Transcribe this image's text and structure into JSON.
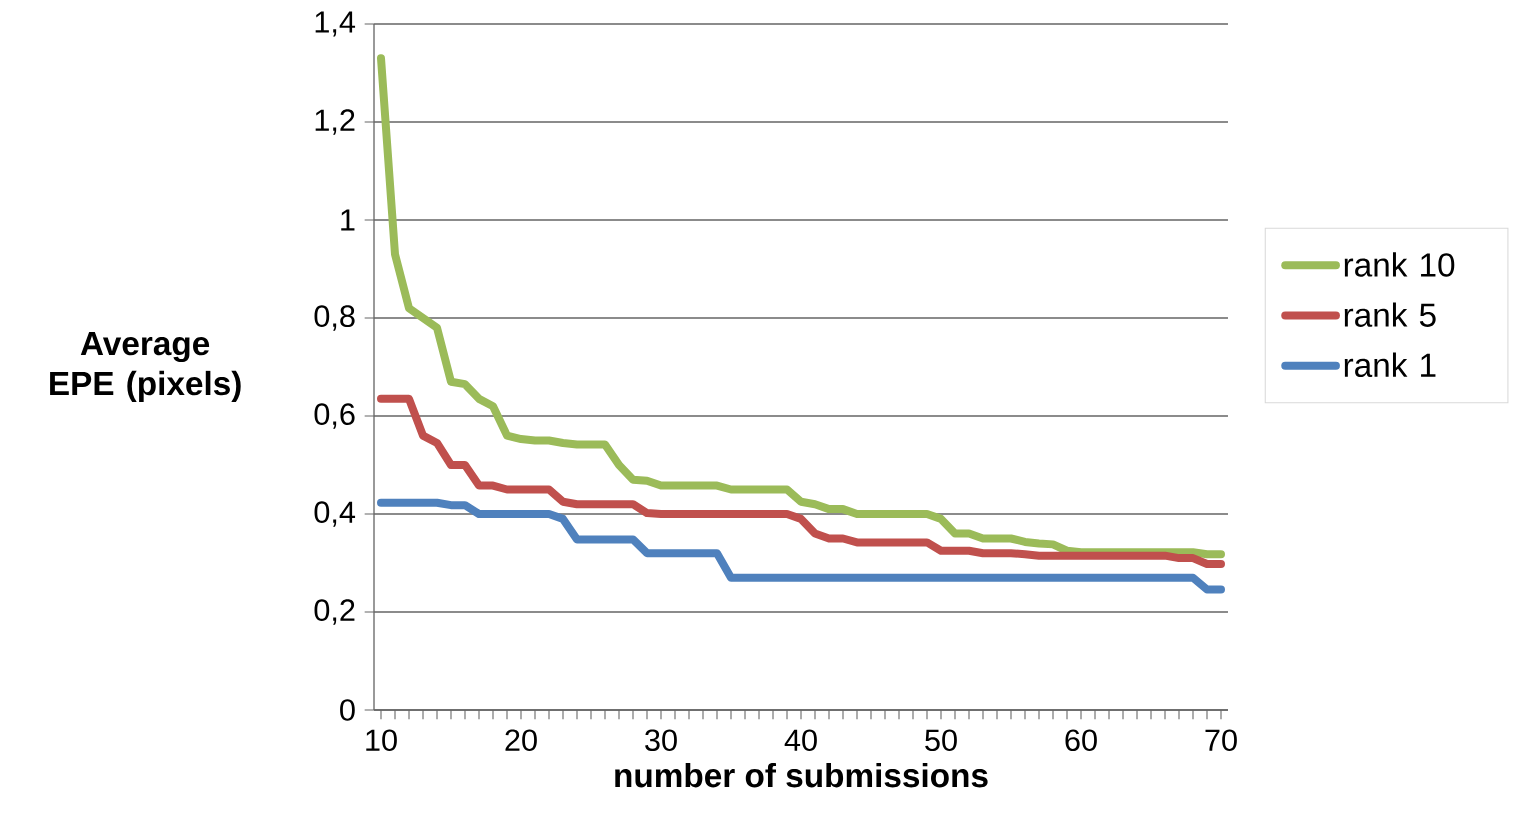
{
  "chart_data": {
    "type": "line",
    "xlabel": "number of submissions",
    "ylabel": "Average EPE (pixels)",
    "x": [
      10,
      11,
      12,
      13,
      14,
      15,
      16,
      17,
      18,
      19,
      20,
      21,
      22,
      23,
      24,
      25,
      26,
      27,
      28,
      29,
      30,
      31,
      32,
      33,
      34,
      35,
      36,
      37,
      38,
      39,
      40,
      41,
      42,
      43,
      44,
      45,
      46,
      47,
      48,
      49,
      50,
      51,
      52,
      53,
      54,
      55,
      56,
      57,
      58,
      59,
      60,
      61,
      62,
      63,
      64,
      65,
      66,
      67,
      68,
      69,
      70
    ],
    "series": [
      {
        "name": "rank 10",
        "color": "#9bbb59",
        "values": [
          1.33,
          0.93,
          0.82,
          0.8,
          0.78,
          0.67,
          0.665,
          0.635,
          0.62,
          0.56,
          0.553,
          0.55,
          0.55,
          0.545,
          0.542,
          0.542,
          0.542,
          0.5,
          0.47,
          0.468,
          0.458,
          0.458,
          0.458,
          0.458,
          0.458,
          0.45,
          0.45,
          0.45,
          0.45,
          0.45,
          0.425,
          0.42,
          0.41,
          0.41,
          0.4,
          0.4,
          0.4,
          0.4,
          0.4,
          0.4,
          0.39,
          0.36,
          0.36,
          0.35,
          0.35,
          0.35,
          0.343,
          0.34,
          0.338,
          0.325,
          0.322,
          0.322,
          0.322,
          0.322,
          0.322,
          0.322,
          0.322,
          0.322,
          0.322,
          0.318,
          0.318
        ]
      },
      {
        "name": "rank 5",
        "color": "#c0504d",
        "values": [
          0.635,
          0.635,
          0.635,
          0.56,
          0.545,
          0.5,
          0.5,
          0.458,
          0.458,
          0.45,
          0.45,
          0.45,
          0.45,
          0.425,
          0.42,
          0.42,
          0.42,
          0.42,
          0.42,
          0.402,
          0.4,
          0.4,
          0.4,
          0.4,
          0.4,
          0.4,
          0.4,
          0.4,
          0.4,
          0.4,
          0.39,
          0.36,
          0.35,
          0.35,
          0.342,
          0.342,
          0.342,
          0.342,
          0.342,
          0.342,
          0.325,
          0.325,
          0.325,
          0.32,
          0.32,
          0.32,
          0.318,
          0.315,
          0.315,
          0.315,
          0.315,
          0.315,
          0.315,
          0.315,
          0.315,
          0.315,
          0.315,
          0.31,
          0.31,
          0.298,
          0.298
        ]
      },
      {
        "name": "rank 1",
        "color": "#4f81bd",
        "values": [
          0.423,
          0.423,
          0.423,
          0.423,
          0.423,
          0.418,
          0.418,
          0.4,
          0.4,
          0.4,
          0.4,
          0.4,
          0.4,
          0.39,
          0.348,
          0.348,
          0.348,
          0.348,
          0.348,
          0.32,
          0.32,
          0.32,
          0.32,
          0.32,
          0.32,
          0.27,
          0.27,
          0.27,
          0.27,
          0.27,
          0.27,
          0.27,
          0.27,
          0.27,
          0.27,
          0.27,
          0.27,
          0.27,
          0.27,
          0.27,
          0.27,
          0.27,
          0.27,
          0.27,
          0.27,
          0.27,
          0.27,
          0.27,
          0.27,
          0.27,
          0.27,
          0.27,
          0.27,
          0.27,
          0.27,
          0.27,
          0.27,
          0.27,
          0.27,
          0.246,
          0.246
        ]
      }
    ],
    "xlim": [
      9.5,
      70.5
    ],
    "xticks": [
      10,
      {
        "value": 11,
        "label": null
      },
      {
        "value": 12,
        "label": null
      },
      {
        "value": 13,
        "label": null
      },
      {
        "value": 14,
        "label": null
      },
      {
        "value": 15,
        "label": null
      },
      {
        "value": 16,
        "label": null
      },
      {
        "value": 17,
        "label": null
      },
      {
        "value": 18,
        "label": null
      },
      {
        "value": 19,
        "label": null
      },
      20,
      {
        "value": 21,
        "label": null
      },
      {
        "value": 22,
        "label": null
      },
      {
        "value": 23,
        "label": null
      },
      {
        "value": 24,
        "label": null
      },
      {
        "value": 25,
        "label": null
      },
      {
        "value": 26,
        "label": null
      },
      {
        "value": 27,
        "label": null
      },
      {
        "value": 28,
        "label": null
      },
      {
        "value": 29,
        "label": null
      },
      30,
      {
        "value": 31,
        "label": null
      },
      {
        "value": 32,
        "label": null
      },
      {
        "value": 33,
        "label": null
      },
      {
        "value": 34,
        "label": null
      },
      {
        "value": 35,
        "label": null
      },
      {
        "value": 36,
        "label": null
      },
      {
        "value": 37,
        "label": null
      },
      {
        "value": 38,
        "label": null
      },
      {
        "value": 39,
        "label": null
      },
      40,
      {
        "value": 41,
        "label": null
      },
      {
        "value": 42,
        "label": null
      },
      {
        "value": 43,
        "label": null
      },
      {
        "value": 44,
        "label": null
      },
      {
        "value": 45,
        "label": null
      },
      {
        "value": 46,
        "label": null
      },
      {
        "value": 47,
        "label": null
      },
      {
        "value": 48,
        "label": null
      },
      {
        "value": 49,
        "label": null
      },
      50,
      {
        "value": 51,
        "label": null
      },
      {
        "value": 52,
        "label": null
      },
      {
        "value": 53,
        "label": null
      },
      {
        "value": 54,
        "label": null
      },
      {
        "value": 55,
        "label": null
      },
      {
        "value": 56,
        "label": null
      },
      {
        "value": 57,
        "label": null
      },
      {
        "value": 58,
        "label": null
      },
      {
        "value": 59,
        "label": null
      },
      60,
      {
        "value": 61,
        "label": null
      },
      {
        "value": 62,
        "label": null
      },
      {
        "value": 63,
        "label": null
      },
      {
        "value": 64,
        "label": null
      },
      {
        "value": 65,
        "label": null
      },
      {
        "value": 66,
        "label": null
      },
      {
        "value": 67,
        "label": null
      },
      {
        "value": 68,
        "label": null
      },
      {
        "value": 69,
        "label": null
      },
      70
    ],
    "ylim": [
      0,
      1.4
    ],
    "yticks": [
      0,
      {
        "value": 0.2,
        "label": "0,2"
      },
      {
        "value": 0.4,
        "label": "0,4"
      },
      {
        "value": 0.6,
        "label": "0,6"
      },
      {
        "value": 0.8,
        "label": "0,8"
      },
      1,
      {
        "value": 1.2,
        "label": "1,2"
      },
      {
        "value": 1.4,
        "label": "1,4"
      }
    ],
    "grid": "y",
    "legend": "right",
    "marker": "none",
    "line_style": "solid"
  }
}
